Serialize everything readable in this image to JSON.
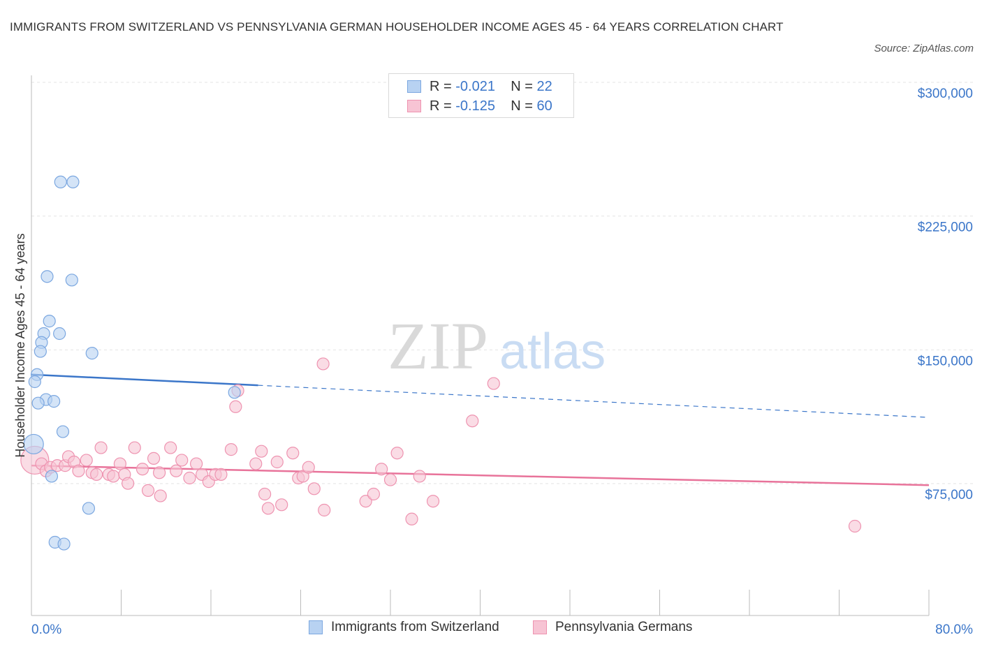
{
  "title": "IMMIGRANTS FROM SWITZERLAND VS PENNSYLVANIA GERMAN HOUSEHOLDER INCOME AGES 45 - 64 YEARS CORRELATION CHART",
  "source": "Source: ZipAtlas.com",
  "watermark": {
    "zip": "ZIP",
    "atlas": "atlas"
  },
  "legend": {
    "r_label": "R = ",
    "n_label": "N = ",
    "series": [
      {
        "name": "Immigrants from Switzerland",
        "r": "-0.021",
        "n": "22"
      },
      {
        "name": "Pennsylvania Germans",
        "r": "-0.125",
        "n": "60"
      }
    ]
  },
  "colors": {
    "blue_fill": "#b8d2f2",
    "blue_stroke": "#7ba7e0",
    "blue_line": "#3b76c9",
    "pink_fill": "#f7c4d4",
    "pink_stroke": "#ee93b0",
    "pink_line": "#e8739a",
    "axis_text": "#3b76c9",
    "grid": "#e3e3e3"
  },
  "chart_data": {
    "type": "scatter",
    "title": "IMMIGRANTS FROM SWITZERLAND VS PENNSYLVANIA GERMAN HOUSEHOLDER INCOME AGES 45 - 64 YEARS CORRELATION CHART",
    "xlabel": "",
    "ylabel": "Householder Income Ages 45 - 64 years",
    "xlim": [
      0,
      80
    ],
    "ylim": [
      0,
      300000
    ],
    "x_tick_labels": [
      "0.0%",
      "80.0%"
    ],
    "y_ticks": [
      75000,
      150000,
      225000,
      300000
    ],
    "y_tick_labels": [
      "$75,000",
      "$150,000",
      "$225,000",
      "$300,000"
    ],
    "grid": true,
    "legend_position": "top-center",
    "series": [
      {
        "name": "Immigrants from Switzerland",
        "color": "#7ba7e0",
        "points": [
          [
            2.6,
            250000
          ],
          [
            3.7,
            250000
          ],
          [
            1.4,
            197000
          ],
          [
            3.6,
            195000
          ],
          [
            1.6,
            172000
          ],
          [
            2.5,
            165000
          ],
          [
            1.1,
            165000
          ],
          [
            0.9,
            160000
          ],
          [
            0.8,
            155000
          ],
          [
            5.4,
            154000
          ],
          [
            0.5,
            142000
          ],
          [
            0.3,
            138000
          ],
          [
            1.3,
            128000
          ],
          [
            2.0,
            127000
          ],
          [
            0.6,
            126000
          ],
          [
            18.1,
            132000
          ],
          [
            2.8,
            110000
          ],
          [
            0.2,
            103000
          ],
          [
            1.8,
            85000
          ],
          [
            5.1,
            67000
          ],
          [
            2.1,
            48000
          ],
          [
            2.9,
            47000
          ]
        ],
        "sizes": [
          1,
          1,
          1,
          1,
          1,
          1,
          1,
          1,
          1,
          1,
          1,
          1,
          1,
          1,
          1,
          1,
          1,
          2,
          1,
          1,
          1,
          1
        ],
        "trend": {
          "x0": 0,
          "y0": 142000,
          "x1": 20.2,
          "y1": 136000,
          "dash_to_x": 80,
          "dash_to_y": 118000
        }
      },
      {
        "name": "Pennsylvania Germans",
        "color": "#ee93b0",
        "points": [
          [
            0.3,
            94000
          ],
          [
            0.9,
            92000
          ],
          [
            1.3,
            88000
          ],
          [
            1.7,
            90000
          ],
          [
            2.3,
            91000
          ],
          [
            3.0,
            91000
          ],
          [
            3.3,
            96000
          ],
          [
            3.8,
            93000
          ],
          [
            4.2,
            88000
          ],
          [
            4.9,
            94000
          ],
          [
            5.4,
            87000
          ],
          [
            5.8,
            86000
          ],
          [
            6.2,
            101000
          ],
          [
            6.9,
            86000
          ],
          [
            7.3,
            85000
          ],
          [
            7.9,
            92000
          ],
          [
            8.3,
            86000
          ],
          [
            8.6,
            81000
          ],
          [
            9.2,
            101000
          ],
          [
            9.9,
            89000
          ],
          [
            10.4,
            77000
          ],
          [
            10.9,
            95000
          ],
          [
            11.4,
            87000
          ],
          [
            11.5,
            74000
          ],
          [
            12.4,
            101000
          ],
          [
            12.9,
            88000
          ],
          [
            13.4,
            94000
          ],
          [
            14.1,
            84000
          ],
          [
            14.7,
            92000
          ],
          [
            15.2,
            86000
          ],
          [
            15.8,
            82000
          ],
          [
            16.4,
            86000
          ],
          [
            16.9,
            86000
          ],
          [
            17.8,
            100000
          ],
          [
            18.4,
            133000
          ],
          [
            18.2,
            124000
          ],
          [
            20.0,
            92000
          ],
          [
            20.5,
            99000
          ],
          [
            20.8,
            75000
          ],
          [
            21.1,
            67000
          ],
          [
            21.9,
            93000
          ],
          [
            22.3,
            69000
          ],
          [
            23.3,
            98000
          ],
          [
            23.8,
            84000
          ],
          [
            24.2,
            85000
          ],
          [
            24.7,
            90000
          ],
          [
            25.2,
            78000
          ],
          [
            26.0,
            148000
          ],
          [
            26.1,
            66000
          ],
          [
            29.8,
            71000
          ],
          [
            30.5,
            75000
          ],
          [
            31.2,
            89000
          ],
          [
            32.0,
            83000
          ],
          [
            32.6,
            98000
          ],
          [
            33.9,
            61000
          ],
          [
            34.6,
            85000
          ],
          [
            35.8,
            71000
          ],
          [
            39.3,
            116000
          ],
          [
            41.2,
            137000
          ],
          [
            73.4,
            57000
          ]
        ],
        "sizes": [
          3,
          1,
          1,
          1,
          1,
          1,
          1,
          1,
          1,
          1,
          1,
          1,
          1,
          1,
          1,
          1,
          1,
          1,
          1,
          1,
          1,
          1,
          1,
          1,
          1,
          1,
          1,
          1,
          1,
          1,
          1,
          1,
          1,
          1,
          1,
          1,
          1,
          1,
          1,
          1,
          1,
          1,
          1,
          1,
          1,
          1,
          1,
          1,
          1,
          1,
          1,
          1,
          1,
          1,
          1,
          1,
          1,
          1,
          1,
          1
        ],
        "trend": {
          "x0": 0,
          "y0": 91000,
          "x1": 80,
          "y1": 80000
        }
      }
    ]
  }
}
